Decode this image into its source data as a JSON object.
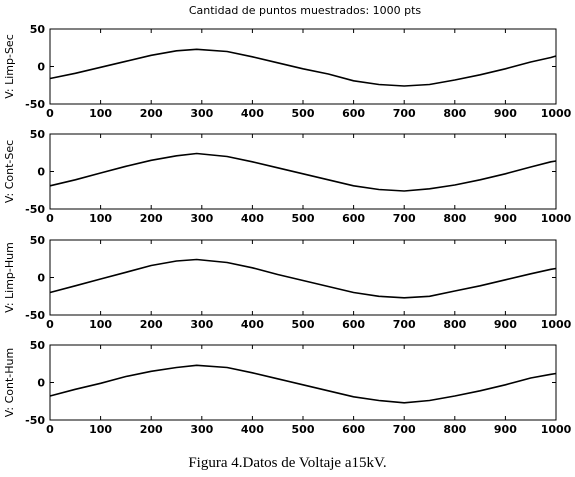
{
  "figure": {
    "title": "Cantidad de puntos muestrados: 1000 pts",
    "caption": "Figura 4.Datos de Voltaje a15kV."
  },
  "chart_data": [
    {
      "type": "line",
      "ylabel": "V: Limp-Sec",
      "xlim": [
        0,
        1000
      ],
      "ylim": [
        -50,
        50
      ],
      "xticks": [
        0,
        100,
        200,
        300,
        400,
        500,
        600,
        700,
        800,
        900,
        1000
      ],
      "yticks": [
        -50,
        0,
        50
      ],
      "series": [
        {
          "x": [
            0,
            50,
            100,
            150,
            200,
            250,
            290,
            350,
            400,
            450,
            500,
            550,
            600,
            650,
            700,
            750,
            800,
            850,
            900,
            950,
            990,
            1000
          ],
          "y": [
            -16,
            -9,
            -1,
            7,
            15,
            21,
            23,
            20,
            13,
            5,
            -3,
            -10,
            -19,
            -24,
            -26,
            -24,
            -18,
            -11,
            -3,
            6,
            12,
            14
          ]
        }
      ]
    },
    {
      "type": "line",
      "ylabel": "V: Cont-Sec",
      "xlim": [
        0,
        1000
      ],
      "ylim": [
        -50,
        50
      ],
      "xticks": [
        0,
        100,
        200,
        300,
        400,
        500,
        600,
        700,
        800,
        900,
        1000
      ],
      "yticks": [
        -50,
        0,
        50
      ],
      "series": [
        {
          "x": [
            0,
            50,
            100,
            150,
            200,
            250,
            290,
            350,
            400,
            450,
            500,
            550,
            600,
            650,
            700,
            750,
            800,
            850,
            900,
            950,
            990,
            1000
          ],
          "y": [
            -19,
            -11,
            -2,
            7,
            15,
            21,
            24,
            20,
            13,
            5,
            -3,
            -11,
            -19,
            -24,
            -26,
            -23,
            -18,
            -11,
            -3,
            6,
            13,
            14
          ]
        }
      ]
    },
    {
      "type": "line",
      "ylabel": "V: Limp-Hum",
      "xlim": [
        0,
        1000
      ],
      "ylim": [
        -50,
        50
      ],
      "xticks": [
        0,
        100,
        200,
        300,
        400,
        500,
        600,
        700,
        800,
        900,
        1000
      ],
      "yticks": [
        -50,
        0,
        50
      ],
      "series": [
        {
          "x": [
            0,
            50,
            100,
            150,
            200,
            250,
            290,
            350,
            400,
            450,
            500,
            550,
            600,
            650,
            700,
            750,
            800,
            850,
            900,
            950,
            990,
            1000
          ],
          "y": [
            -20,
            -11,
            -2,
            7,
            16,
            22,
            24,
            20,
            13,
            4,
            -4,
            -12,
            -20,
            -25,
            -27,
            -25,
            -18,
            -11,
            -3,
            5,
            11,
            12
          ]
        }
      ]
    },
    {
      "type": "line",
      "ylabel": "V: Cont-Hum",
      "xlim": [
        0,
        1000
      ],
      "ylim": [
        -50,
        50
      ],
      "xticks": [
        0,
        100,
        200,
        300,
        400,
        500,
        600,
        700,
        800,
        900,
        1000
      ],
      "yticks": [
        -50,
        0,
        50
      ],
      "series": [
        {
          "x": [
            0,
            50,
            100,
            150,
            200,
            250,
            290,
            350,
            400,
            450,
            500,
            550,
            600,
            650,
            700,
            750,
            800,
            850,
            900,
            950,
            990,
            1000
          ],
          "y": [
            -18,
            -9,
            -1,
            8,
            15,
            20,
            23,
            20,
            13,
            5,
            -3,
            -11,
            -19,
            -24,
            -27,
            -24,
            -18,
            -11,
            -3,
            6,
            11,
            12
          ]
        }
      ]
    }
  ]
}
